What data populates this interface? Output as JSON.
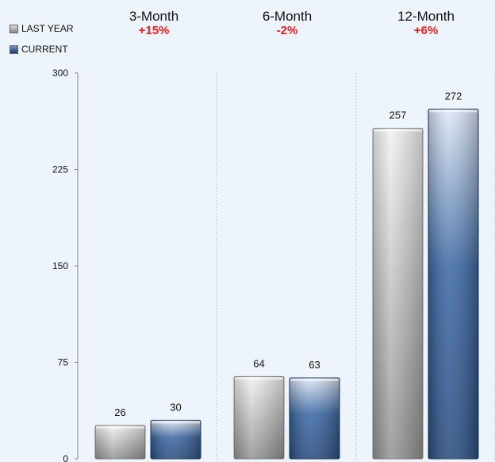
{
  "chart_data": {
    "type": "bar",
    "categories": [
      "3-Month",
      "6-Month",
      "12-Month"
    ],
    "category_changes": [
      "+15%",
      "-2%",
      "+6%"
    ],
    "series": [
      {
        "name": "LAST YEAR",
        "values": [
          26,
          64,
          257
        ],
        "color": "#b0b0b0"
      },
      {
        "name": "CURRENT",
        "values": [
          30,
          63,
          272
        ],
        "color": "#3d6399"
      }
    ],
    "y_ticks": [
      "0",
      "75",
      "150",
      "225",
      "300"
    ],
    "ylim": [
      0,
      300
    ],
    "legend_position": "top-left",
    "colors": {
      "change_text": "#ff1a1a",
      "background": "#eef4fc"
    }
  }
}
